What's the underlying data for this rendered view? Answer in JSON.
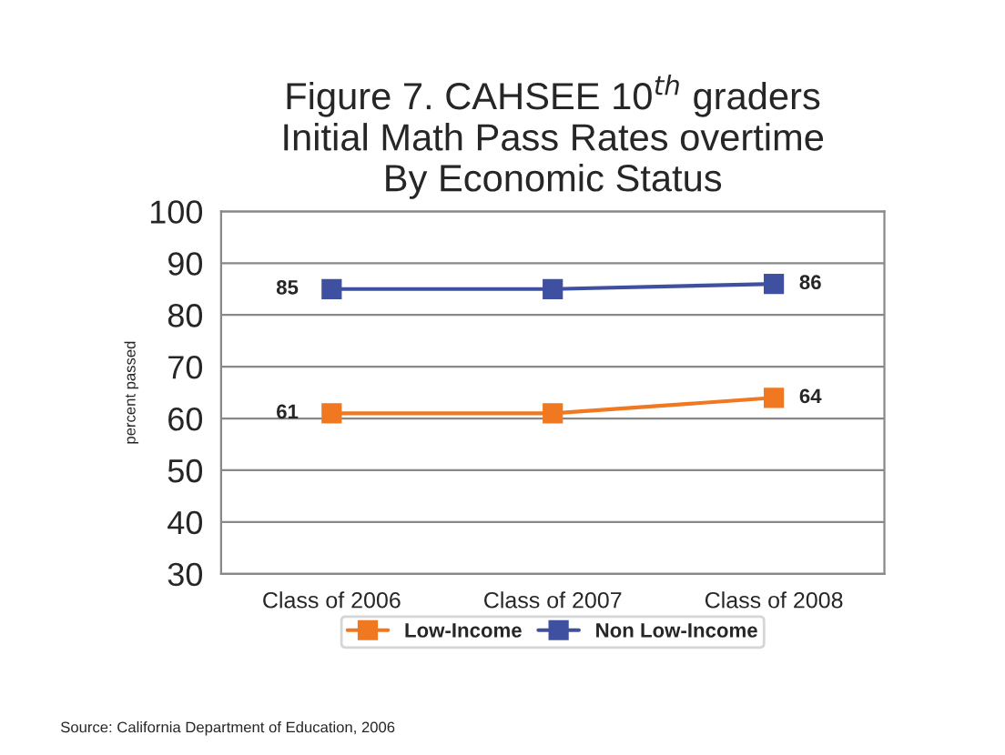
{
  "chart_data": {
    "type": "line",
    "title": "Figure 7. CAHSEE 10$^{th}$ graders\nInitial Math Pass Rates overtime\nBy Economic Status",
    "ylabel": "percent passed",
    "categories": [
      "Class of 2006",
      "Class of 2007",
      "Class of 2008"
    ],
    "series": [
      {
        "name": "Low-Income",
        "color": "#f07820",
        "values": [
          61,
          61,
          64
        ],
        "value_labels": [
          "61",
          null,
          "64"
        ]
      },
      {
        "name": "Non Low-Income",
        "color": "#4050a0",
        "values": [
          85,
          85,
          86
        ],
        "value_labels": [
          "85",
          null,
          "86"
        ]
      }
    ],
    "ylim": [
      30,
      100
    ],
    "yticks": [
      30,
      40,
      50,
      60,
      70,
      80,
      90,
      100
    ],
    "grid": "y",
    "legend": "bottom",
    "marker": "square",
    "line_style": "solid",
    "annotations": [
      "Source: California Department of Education, 2006"
    ]
  }
}
